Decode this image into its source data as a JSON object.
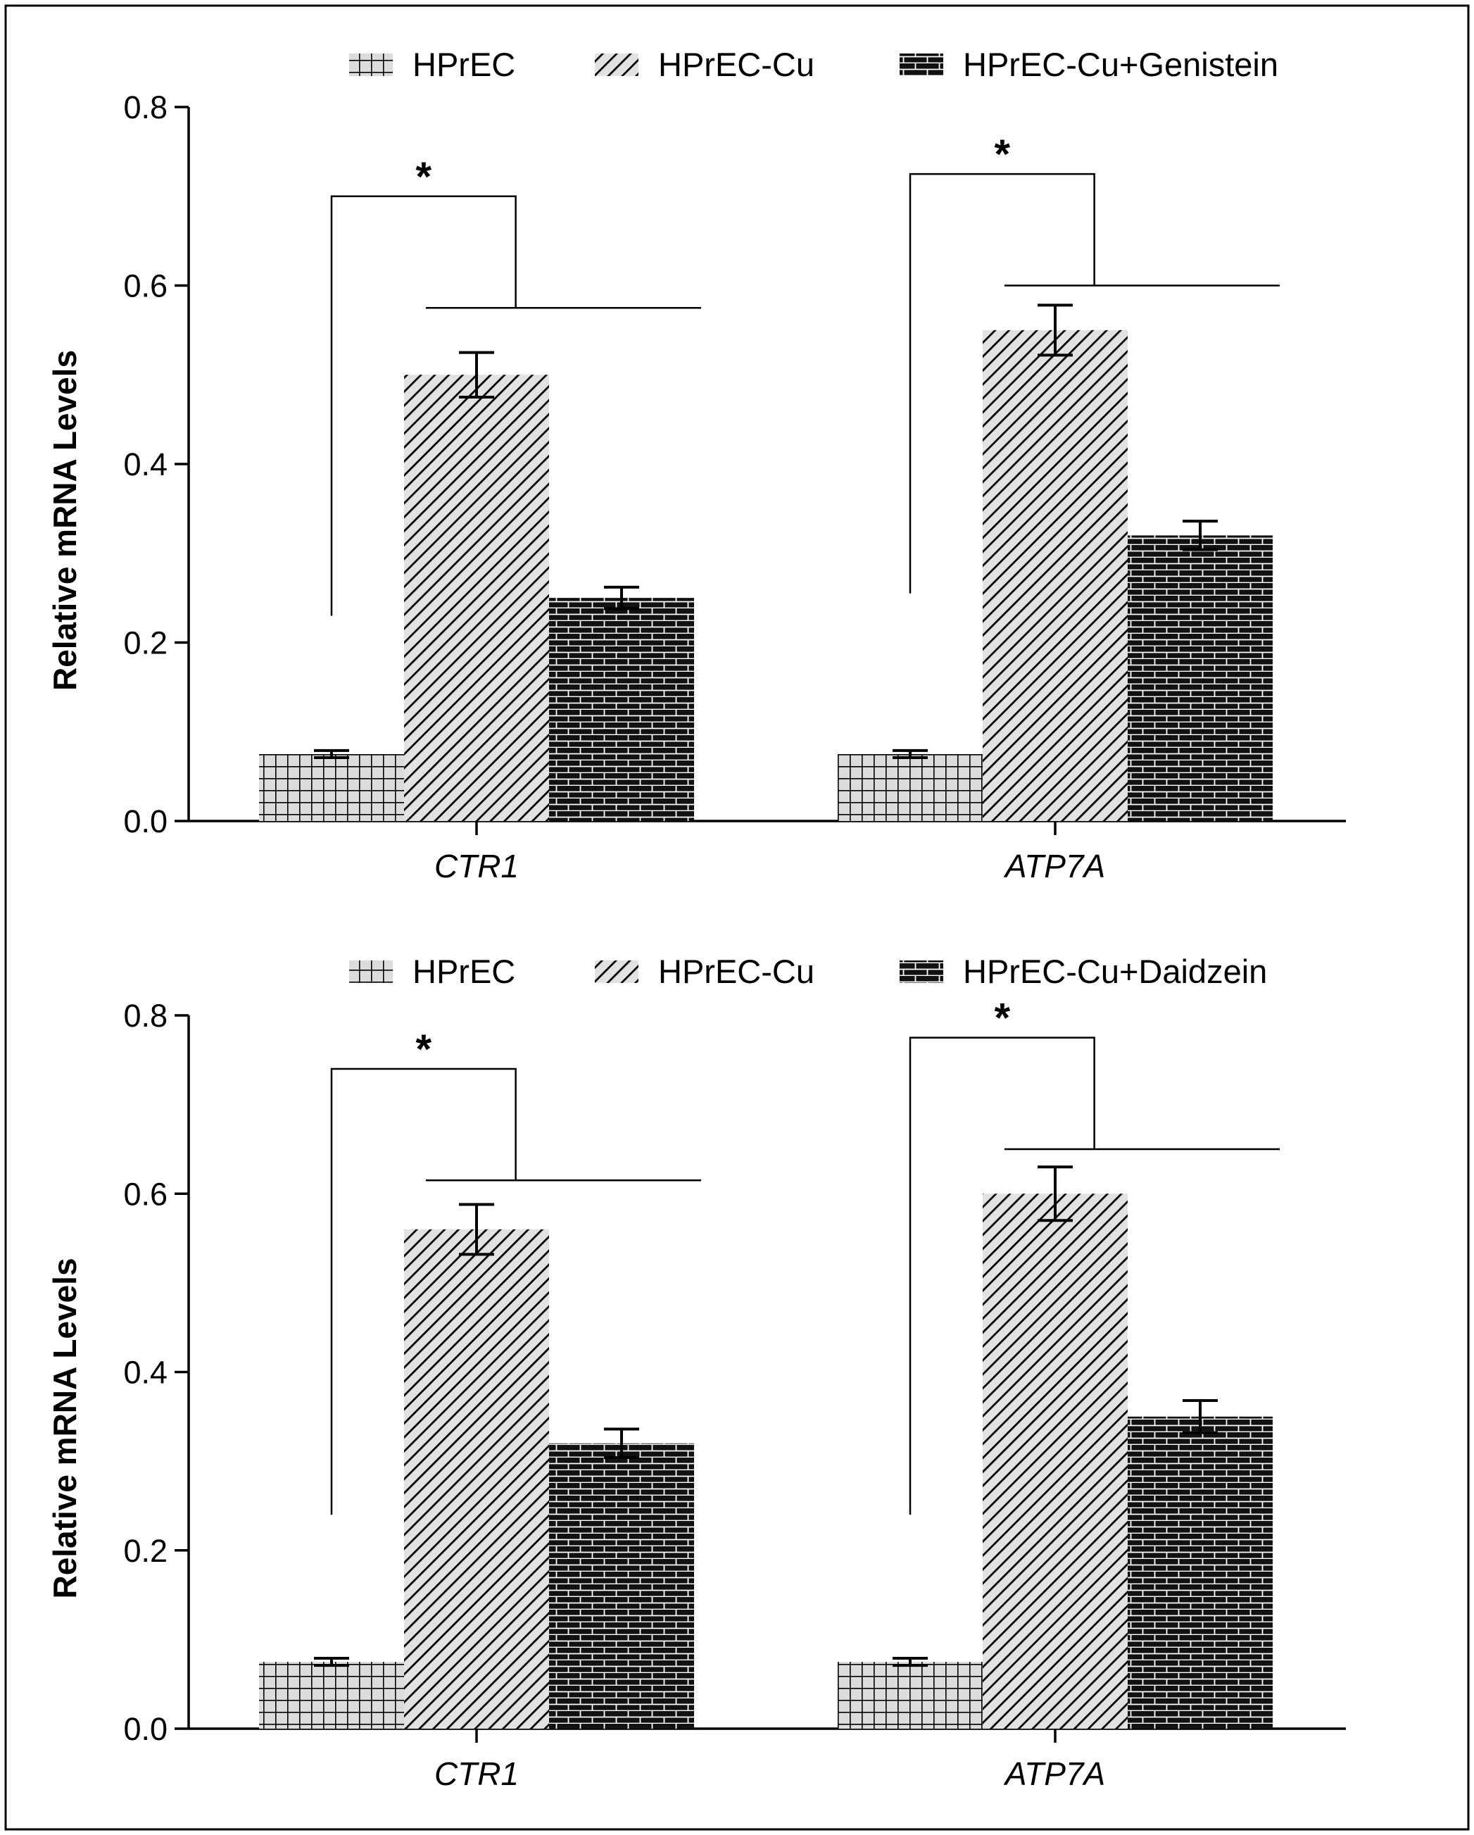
{
  "colors": {
    "ink": "#000000",
    "background": "#ffffff",
    "hatch_fill": "#d9d9d9"
  },
  "chart_data": [
    {
      "type": "bar",
      "categories": [
        "CTR1",
        "ATP7A"
      ],
      "series": [
        {
          "name": "HPrEC",
          "pattern": "grid",
          "values": [
            0.075,
            0.075
          ],
          "errors": [
            0.004,
            0.004
          ]
        },
        {
          "name": "HPrEC-Cu",
          "pattern": "diagonal",
          "values": [
            0.5,
            0.55
          ],
          "errors": [
            0.025,
            0.028
          ]
        },
        {
          "name": "HPrEC-Cu+Genistein",
          "pattern": "brick",
          "values": [
            0.25,
            0.32
          ],
          "errors": [
            0.012,
            0.016
          ]
        }
      ],
      "yticks": [
        "0.0",
        "0.2",
        "0.4",
        "0.6",
        "0.8"
      ],
      "ylabel": "Relative mRNA Levels",
      "xlabel": "",
      "ylim": [
        0,
        0.8
      ],
      "legend": "top",
      "grid": false,
      "significance": [
        {
          "category": "CTR1",
          "label": "*",
          "left_bar_top": 0.23,
          "bracket_y": 0.7,
          "right_line_y": 0.575
        },
        {
          "category": "ATP7A",
          "label": "*",
          "left_bar_top": 0.255,
          "bracket_y": 0.725,
          "right_line_y": 0.6
        }
      ]
    },
    {
      "type": "bar",
      "categories": [
        "CTR1",
        "ATP7A"
      ],
      "series": [
        {
          "name": "HPrEC",
          "pattern": "grid",
          "values": [
            0.075,
            0.075
          ],
          "errors": [
            0.004,
            0.004
          ]
        },
        {
          "name": "HPrEC-Cu",
          "pattern": "diagonal",
          "values": [
            0.56,
            0.6
          ],
          "errors": [
            0.028,
            0.03
          ]
        },
        {
          "name": "HPrEC-Cu+Daidzein",
          "pattern": "brick",
          "values": [
            0.32,
            0.35
          ],
          "errors": [
            0.016,
            0.018
          ]
        }
      ],
      "yticks": [
        "0.0",
        "0.2",
        "0.4",
        "0.6",
        "0.8"
      ],
      "ylabel": "Relative mRNA Levels",
      "xlabel": "",
      "ylim": [
        0,
        0.8
      ],
      "legend": "top",
      "grid": false,
      "significance": [
        {
          "category": "CTR1",
          "label": "*",
          "left_bar_top": 0.24,
          "bracket_y": 0.74,
          "right_line_y": 0.615
        },
        {
          "category": "ATP7A",
          "label": "*",
          "left_bar_top": 0.24,
          "bracket_y": 0.775,
          "right_line_y": 0.65
        }
      ]
    }
  ]
}
